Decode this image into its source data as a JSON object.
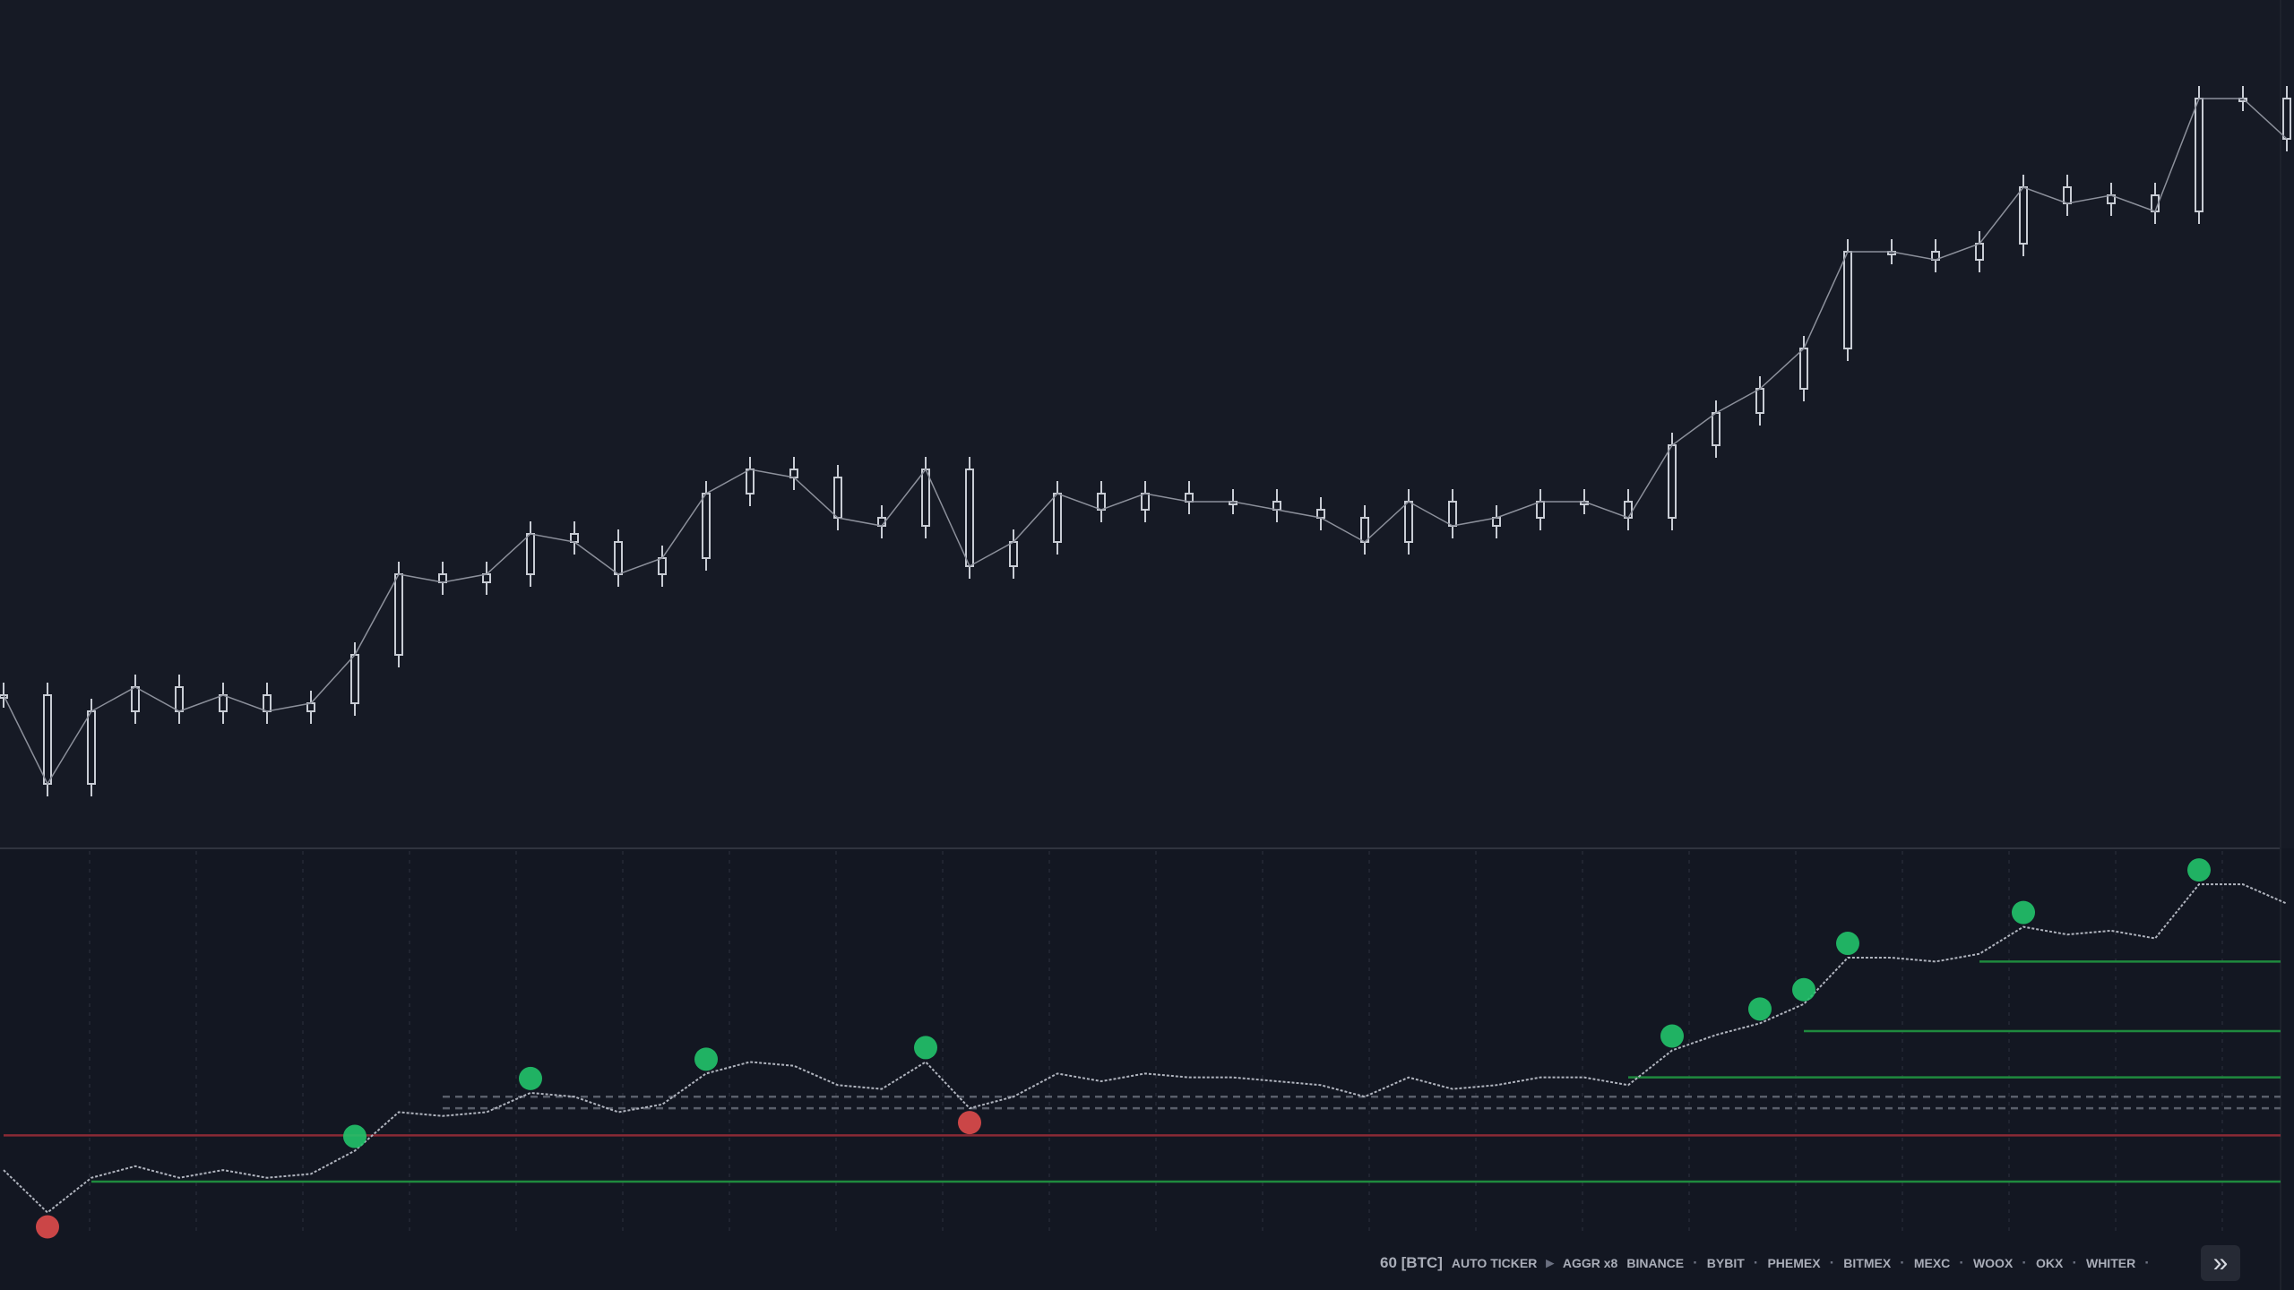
{
  "chart_data": {
    "type": "candlestick",
    "ylim": [
      0,
      100
    ],
    "color": "#c8ccd4",
    "values": [
      19,
      8,
      17,
      20,
      17,
      19,
      17,
      18,
      24,
      34,
      33,
      34,
      39,
      38,
      34,
      36,
      44,
      47,
      46,
      41,
      40,
      47,
      35,
      38,
      44,
      42,
      44,
      43,
      43,
      42,
      41,
      38,
      43,
      40,
      41,
      43,
      43,
      41,
      50,
      54,
      57,
      62,
      74,
      74,
      73,
      75,
      82,
      80,
      81,
      79,
      93,
      93,
      88
    ],
    "buy_signals": [
      8,
      12,
      16,
      21,
      38,
      40,
      41,
      42,
      46,
      50
    ],
    "sell_signals": [
      1,
      22
    ],
    "buy_color": "#22c36a",
    "sell_color": "#e04b4b",
    "levels": [
      {
        "start": 2,
        "value": 16,
        "color": "#1f8a3e"
      },
      {
        "start": 37,
        "value": 43,
        "color": "#1f8a3e"
      },
      {
        "start": 41,
        "value": 55,
        "color": "#1f8a3e"
      },
      {
        "start": 45,
        "value": 73,
        "color": "#1f8a3e"
      },
      {
        "start": 0,
        "value": 28,
        "color": "#8a2a35"
      },
      {
        "start": 10,
        "value": 38,
        "color": "#5a5f6b",
        "dashed": true
      },
      {
        "start": 10,
        "value": 35,
        "color": "#5a5f6b",
        "dashed": true
      }
    ]
  },
  "footer": {
    "interval": "60 [BTC]",
    "ticker": "AUTO TICKER",
    "aggr": "AGGR x8",
    "exchanges": [
      "BINANCE",
      "BYBIT",
      "PHEMEX",
      "BITMEX",
      "MEXC",
      "WOOX",
      "OKX",
      "WHITER"
    ]
  }
}
